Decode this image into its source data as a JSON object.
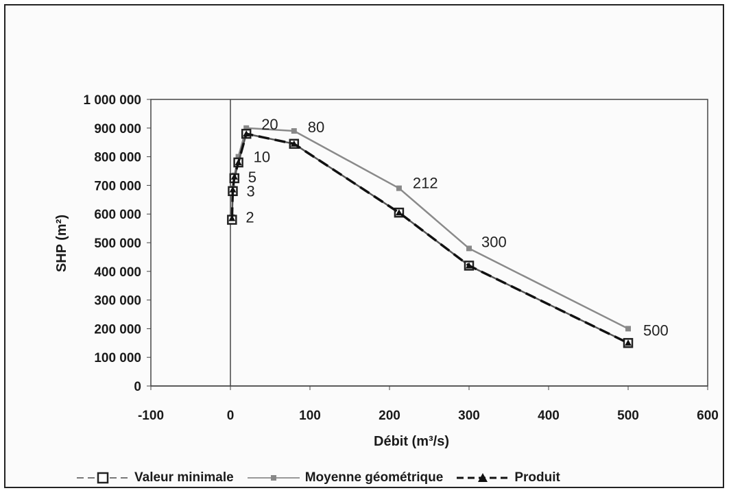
{
  "chart_data": {
    "type": "line",
    "xlabel": "Débit (m³/s)",
    "ylabel": "SHP (m²)",
    "xlim": [
      -100,
      600
    ],
    "ylim": [
      0,
      1000000
    ],
    "x_ticks": [
      "-100",
      "0",
      "100",
      "200",
      "300",
      "400",
      "500",
      "600"
    ],
    "y_ticks": [
      "0",
      "100 000",
      "200 000",
      "300 000",
      "400 000",
      "500 000",
      "600 000",
      "700 000",
      "800 000",
      "900 000",
      "1 000 000"
    ],
    "x": [
      2,
      3,
      5,
      10,
      20,
      80,
      212,
      300,
      500
    ],
    "point_labels": [
      "2",
      "3",
      "5",
      "10",
      "20",
      "80",
      "212",
      "300",
      "500"
    ],
    "series": [
      {
        "name": "Valeur minimale",
        "values": [
          580000,
          680000,
          725000,
          780000,
          880000,
          845000,
          605000,
          420000,
          150000
        ],
        "color": "#555555",
        "marker": "square-open",
        "dash": "solid"
      },
      {
        "name": "Moyenne géométrique",
        "values": [
          590000,
          690000,
          735000,
          800000,
          900000,
          890000,
          690000,
          480000,
          200000
        ],
        "color": "#8a8a8a",
        "marker": "square-small",
        "dash": "solid"
      },
      {
        "name": "Produit",
        "values": [
          585000,
          685000,
          730000,
          780000,
          880000,
          845000,
          605000,
          420000,
          150000
        ],
        "color": "#111111",
        "marker": "triangle",
        "dash": "dashed"
      }
    ],
    "grid": false,
    "legend_position": "bottom"
  }
}
